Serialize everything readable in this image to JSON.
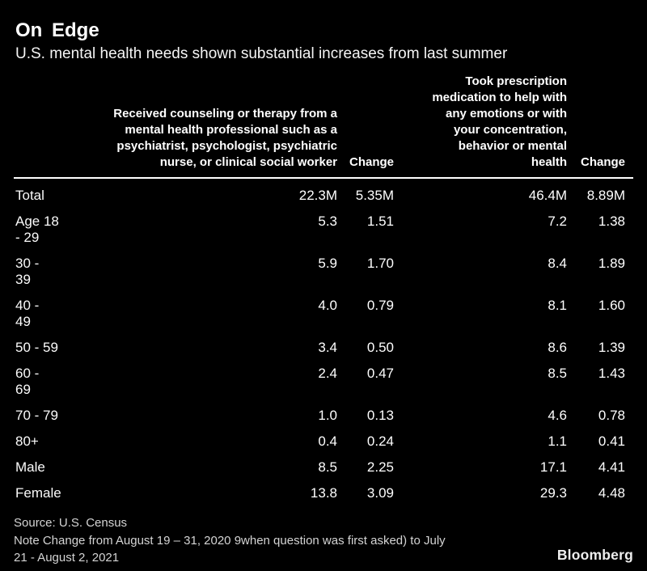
{
  "title": "On Edge",
  "subtitle": "U.S. mental health needs shown substantial increases from last summer",
  "colors": {
    "background": "#000000",
    "text": "#ffffff",
    "footer_text": "#d4d4d4",
    "rule": "#ffffff"
  },
  "table": {
    "col_headers": {
      "counseling": "Received counseling or therapy from a\nmental health professional such as a\npsychiatrist, psychologist, psychiatric\nnurse, or clinical social worker",
      "change1": "Change",
      "medication": "Took prescription\nmedication to help with\nany emotions or with\nyour concentration,\nbehavior or mental\nhealth",
      "change2": "Change"
    },
    "rows": [
      {
        "label": "Total",
        "counseling": "22.3M",
        "change1": "5.35M",
        "medication": "46.4M",
        "change2": "8.89M"
      },
      {
        "label": "Age 18\n- 29",
        "counseling": "5.3",
        "change1": "1.51",
        "medication": "7.2",
        "change2": "1.38"
      },
      {
        "label": "30 -\n39",
        "counseling": "5.9",
        "change1": "1.70",
        "medication": "8.4",
        "change2": "1.89"
      },
      {
        "label": "40 -\n49",
        "counseling": "4.0",
        "change1": "0.79",
        "medication": "8.1",
        "change2": "1.60"
      },
      {
        "label": "50 - 59",
        "counseling": "3.4",
        "change1": "0.50",
        "medication": "8.6",
        "change2": "1.39"
      },
      {
        "label": "60 -\n69",
        "counseling": "2.4",
        "change1": "0.47",
        "medication": "8.5",
        "change2": "1.43"
      },
      {
        "label": "70 - 79",
        "counseling": "1.0",
        "change1": "0.13",
        "medication": "4.6",
        "change2": "0.78"
      },
      {
        "label": "80+",
        "counseling": "0.4",
        "change1": "0.24",
        "medication": "1.1",
        "change2": "0.41"
      },
      {
        "label": "Male",
        "counseling": "8.5",
        "change1": "2.25",
        "medication": "17.1",
        "change2": "4.41"
      },
      {
        "label": "Female",
        "counseling": "13.8",
        "change1": "3.09",
        "medication": "29.3",
        "change2": "4.48"
      }
    ]
  },
  "footer": {
    "source": "Source: U.S. Census",
    "note": "Note Change from August 19 – 31, 2020 9when question was first asked) to July\n21 - August 2, 2021",
    "brand": "Bloomberg"
  },
  "chart_data": {
    "type": "table",
    "title": "On Edge",
    "subtitle": "U.S. mental health needs shown substantial increases from last summer",
    "columns": [
      "",
      "Received counseling or therapy from a mental health professional such as a psychiatrist, psychologist, psychiatric nurse, or clinical social worker",
      "Change",
      "Took prescription medication to help with any emotions or with your concentration, behavior or mental health",
      "Change"
    ],
    "rows": [
      [
        "Total",
        "22.3M",
        "5.35M",
        "46.4M",
        "8.89M"
      ],
      [
        "Age 18 - 29",
        "5.3",
        "1.51",
        "7.2",
        "1.38"
      ],
      [
        "30 - 39",
        "5.9",
        "1.70",
        "8.4",
        "1.89"
      ],
      [
        "40 - 49",
        "4.0",
        "0.79",
        "8.1",
        "1.60"
      ],
      [
        "50 - 59",
        "3.4",
        "0.50",
        "8.6",
        "1.39"
      ],
      [
        "60 - 69",
        "2.4",
        "0.47",
        "8.5",
        "1.43"
      ],
      [
        "70 - 79",
        "1.0",
        "0.13",
        "4.6",
        "0.78"
      ],
      [
        "80+",
        "0.4",
        "0.24",
        "1.1",
        "0.41"
      ],
      [
        "Male",
        "8.5",
        "2.25",
        "17.1",
        "4.41"
      ],
      [
        "Female",
        "13.8",
        "3.09",
        "29.3",
        "4.48"
      ]
    ],
    "source": "Source: U.S. Census",
    "note": "Note Change from August 19 – 31, 2020 9when question was first asked) to July 21 - August 2, 2021",
    "layout": {
      "background": "#000000",
      "grid": false,
      "header_rule": true,
      "value_alignment": "right"
    }
  }
}
